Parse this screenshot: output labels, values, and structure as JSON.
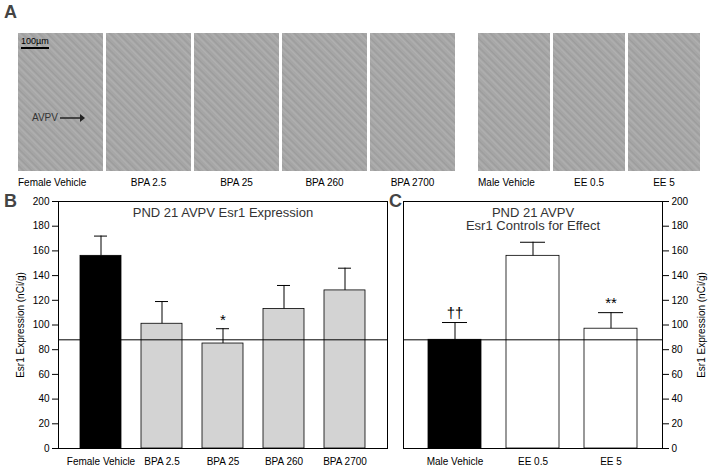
{
  "panel_a": {
    "letter": "A",
    "scale_bar": "100µm",
    "region_label": "AVPV",
    "images": [
      [
        "Female Vehicle",
        "BPA 2.5",
        "BPA 25",
        "BPA 260",
        "BPA 2700"
      ],
      [
        "Male Vehicle",
        "EE 0.5",
        "EE 5"
      ]
    ]
  },
  "chart_data": [
    {
      "type": "bar",
      "panel": "B",
      "title": "PND 21 AVPV Esr1 Expression",
      "categories": [
        "Female Vehicle",
        "BPA 2.5",
        "BPA 25",
        "BPA 260",
        "BPA 2700"
      ],
      "values": [
        156,
        101,
        85,
        113,
        128
      ],
      "errors": [
        16,
        18,
        12,
        19,
        18
      ],
      "colors": [
        "#000000",
        "#d3d3d3",
        "#d3d3d3",
        "#d3d3d3",
        "#d3d3d3"
      ],
      "reference_line": 88,
      "annotations": [
        {
          "category": "BPA 25",
          "text": "*"
        }
      ],
      "y_label": "Esr1 Expression (nCi/g)",
      "ylim": [
        0,
        200
      ],
      "yticks": [
        0,
        20,
        40,
        60,
        80,
        100,
        120,
        140,
        160,
        180,
        200
      ]
    },
    {
      "type": "bar",
      "panel": "C",
      "title": "PND 21 AVPV\nEsr1 Controls for Effect",
      "categories": [
        "Male Vehicle",
        "EE 0.5",
        "EE 5"
      ],
      "values": [
        88,
        156,
        97
      ],
      "errors": [
        14,
        11,
        13
      ],
      "colors": [
        "#000000",
        "#ffffff",
        "#ffffff"
      ],
      "reference_line": 88,
      "annotations": [
        {
          "category": "Male Vehicle",
          "text": "††"
        },
        {
          "category": "EE 5",
          "text": "**"
        }
      ],
      "y_label": "Esr1 Expression (nCi/g)",
      "ylim": [
        0,
        200
      ],
      "yticks": [
        0,
        20,
        40,
        60,
        80,
        100,
        120,
        140,
        160,
        180,
        200
      ]
    }
  ]
}
